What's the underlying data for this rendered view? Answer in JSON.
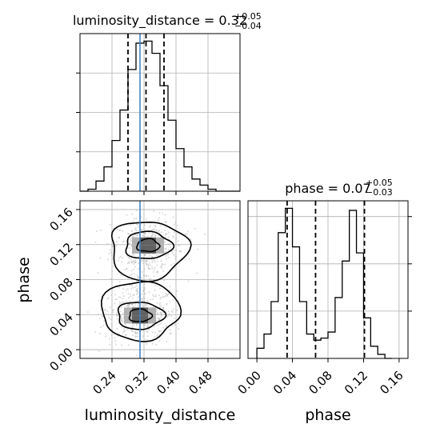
{
  "chart_data": [
    {
      "type": "histogram",
      "title_param": "luminosity_distance",
      "title_value": "0.32",
      "title_plus": "+0.05",
      "title_minus": "−0.04",
      "xlim": [
        0.16,
        0.56
      ],
      "bin_edges": [
        0.16,
        0.18,
        0.2,
        0.22,
        0.24,
        0.26,
        0.28,
        0.3,
        0.32,
        0.34,
        0.36,
        0.38,
        0.4,
        0.42,
        0.44,
        0.46,
        0.48,
        0.5,
        0.52,
        0.54,
        0.56
      ],
      "counts": [
        0,
        1,
        5,
        12,
        25,
        40,
        60,
        73,
        74,
        68,
        52,
        35,
        21,
        12,
        6,
        3,
        1,
        0,
        0,
        0
      ],
      "quantiles": [
        0.28,
        0.325,
        0.37
      ],
      "truth": 0.31,
      "x_ticks": [
        0.24,
        0.32,
        0.4,
        0.48
      ],
      "grid": true
    },
    {
      "type": "contour-2d",
      "xlabel": "luminosity_distance",
      "ylabel": "phase",
      "xlim": [
        0.16,
        0.56
      ],
      "ylim": [
        -0.01,
        0.17
      ],
      "x_ticks": [
        "0.24",
        "0.32",
        "0.40",
        "0.48"
      ],
      "y_ticks": [
        "0.00",
        "0.04",
        "0.08",
        "0.12",
        "0.16"
      ],
      "modes": [
        {
          "x": 0.33,
          "y": 0.119
        },
        {
          "x": 0.31,
          "y": 0.039
        }
      ],
      "truth_x": 0.31,
      "grid": true
    },
    {
      "type": "histogram",
      "title_param": "phase",
      "title_value": "0.07",
      "title_plus": "+0.05",
      "title_minus": "−0.03",
      "xlabel": "phase",
      "xlim": [
        -0.01,
        0.17
      ],
      "bin_edges": [
        0.0,
        0.008,
        0.016,
        0.024,
        0.032,
        0.04,
        0.048,
        0.056,
        0.064,
        0.072,
        0.08,
        0.088,
        0.096,
        0.104,
        0.112,
        0.12,
        0.128,
        0.136,
        0.144,
        0.152
      ],
      "counts": [
        5,
        12,
        28,
        62,
        74,
        55,
        28,
        12,
        9,
        10,
        13,
        30,
        48,
        73,
        52,
        20,
        6,
        2,
        0
      ],
      "quantiles": [
        0.034,
        0.066,
        0.121
      ],
      "x_ticks": [
        "0.00",
        "0.04",
        "0.08",
        "0.12",
        "0.16"
      ],
      "grid": true
    }
  ],
  "colors": {
    "hist": "#000000",
    "truth": "#4682b4",
    "grid": "#b0b0b0",
    "scatter": "#999999"
  }
}
